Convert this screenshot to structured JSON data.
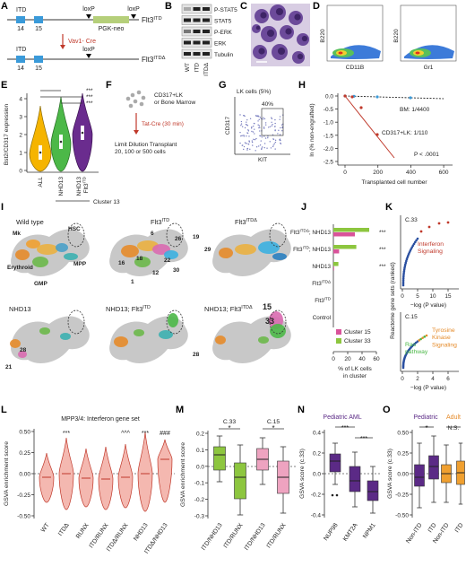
{
  "panel_a": {
    "label": "A",
    "itd_top": "ITD",
    "loxp_top_left": "loxP",
    "loxp_top_right": "loxP",
    "exon14_top": "14",
    "exon15_top": "15",
    "neo": "PGK-neo",
    "allele_top": {
      "base": "Flt3",
      "sup": "ITD"
    },
    "cre": "Vav1- Cre",
    "itd_bottom": "ITD",
    "loxp_bottom": "loxP",
    "exon14_bottom": "14",
    "exon15_bottom": "15",
    "allele_bottom": {
      "base": "Flt3",
      "sup": "ITDΔ"
    }
  },
  "panel_b": {
    "label": "B",
    "proteins": [
      "P-STAT5",
      "STAT5",
      "P-ERK",
      "ERK",
      "Tubulin"
    ],
    "lanes": [
      "WT",
      "ITD",
      "ITDΔ"
    ]
  },
  "panel_c": {
    "label": "C"
  },
  "panel_d": {
    "label": "D",
    "plots": [
      {
        "y": "B220",
        "x": "CD11B"
      },
      {
        "y": "B220",
        "x": "Gr1"
      }
    ]
  },
  "panel_e": {
    "label": "E",
    "y_label": "Bst2/CD317 expression",
    "yticks": [
      "0",
      "1",
      "2",
      "3",
      "4"
    ],
    "groups": [
      "ALL",
      "NHD13",
      "NHD13"
    ],
    "group_3_allele": {
      "base": "Flt3",
      "sup": "ITD"
    },
    "cluster": "Cluster 13",
    "significance": [
      "***",
      "***",
      "***"
    ]
  },
  "panel_f": {
    "label": "F",
    "source": [
      "CD317+LK",
      "or Bone Marrow"
    ],
    "treatment": "Tat-Cre (30 min)",
    "assay": [
      "Limit Dilution Transplant",
      "20, 100 or 500 cells"
    ]
  },
  "panel_g": {
    "label": "G",
    "title": "LK cells (5%)",
    "gate": "40%",
    "y_label": "CD317",
    "x_label": "KIT"
  },
  "panel_h": {
    "label": "H",
    "y_label": "ln (% non-engrafted)",
    "yticks": [
      "0.0",
      "-0.5",
      "-1.0",
      "-1.5",
      "-2.0",
      "-2.5"
    ],
    "xticks": [
      "0",
      "200",
      "400",
      "600"
    ],
    "x_label": "Transplanted cell number",
    "bm": "BM: 1/4400",
    "lk": "CD317+LK: 1/110",
    "p_value": "P < .0001"
  },
  "panel_i": {
    "label": "I",
    "titles": [
      "Wild type",
      {
        "base": "Flt3",
        "sup": "ITD"
      },
      {
        "base": "Flt3",
        "sup": "ITDΔ"
      },
      "NHD13",
      {
        "base": "NHD13; Flt3",
        "sup": "ITD"
      },
      {
        "base": "NHD13; Flt3",
        "sup": "ITDΔ"
      }
    ],
    "populations": [
      "Mk",
      "HSC",
      "MPP",
      "Erythroid",
      "GMP"
    ],
    "clusters": [
      "6",
      "26",
      "19",
      "29",
      "16",
      "18",
      "22",
      "12",
      "30",
      "1",
      "28",
      "21",
      "28",
      "15",
      "33"
    ]
  },
  "panel_j": {
    "label": "J",
    "type": "bar",
    "categories": [
      {
        "base": "Flt3",
        "sup": "ITDΔ",
        "rest": "; NHD13"
      },
      {
        "base": "Flt3",
        "sup": "ITD",
        "rest": "; NHD13"
      },
      "NHD13",
      {
        "base": "Flt3",
        "sup": "ITDΔ"
      },
      {
        "base": "Flt3",
        "sup": "ITD"
      },
      "Control"
    ],
    "series": [
      {
        "name": "Cluster 15",
        "color": "#d9539a",
        "values": [
          30,
          8,
          1,
          0,
          0,
          0
        ]
      },
      {
        "name": "Cluster 33",
        "color": "#8dc63f",
        "values": [
          50,
          32,
          7,
          0,
          0,
          0
        ]
      }
    ],
    "xlim": [
      0,
      60
    ],
    "xticks": [
      0,
      20,
      40,
      60
    ],
    "x_label": [
      "% of LK cells",
      "in cluster"
    ],
    "significance": [
      "***",
      "***",
      "***"
    ]
  },
  "panel_k": {
    "label": "K",
    "y_label": "Reactome gene sets (ranked)",
    "top": {
      "cluster": "C.33",
      "pathway": [
        "Interferon",
        "Signaling"
      ],
      "xticks": [
        "0",
        "5",
        "10",
        "15"
      ],
      "x_label": "−log (P value)"
    },
    "bottom": {
      "cluster": "C.15",
      "pathways": [
        [
          "Tyrosine",
          "Kinase",
          "Signaling"
        ],
        [
          "Ras",
          "pathway"
        ]
      ],
      "xticks": [
        "0",
        "2",
        "4",
        "6"
      ],
      "x_label": "−log (P value)"
    }
  },
  "panel_l": {
    "label": "L",
    "title": "MPP3/4: Interferon gene set",
    "y_label": "GSVA enrichment score",
    "yticks": [
      "0.50",
      "0.25",
      "0.00",
      "-0.25",
      "-0.50"
    ],
    "groups": [
      "WT",
      "ITDΔ",
      "RUNX",
      "ITD/RUNX",
      "ITDΔ/RUNX",
      "NHD13",
      "ITDΔ/NHD13"
    ],
    "significance": [
      "***",
      "^^^",
      "***",
      "###"
    ]
  },
  "panel_m": {
    "label": "M",
    "clusters": [
      "C.33",
      "C.15"
    ],
    "y_label": "GSVA enrichment score",
    "yticks": [
      "0.2",
      "0.1",
      "0.0",
      "-0.1",
      "-0.2",
      "-0.3"
    ],
    "groups": [
      "ITD/NHD13",
      "ITD/RUNX",
      "ITD/NHD13",
      "ITD/RUNX"
    ],
    "significance": [
      "*",
      "*"
    ]
  },
  "panel_n": {
    "label": "N",
    "title": "Pediatric AML",
    "y_label": "GSVA score (c.33)",
    "yticks": [
      "0.4",
      "0.2",
      "0.0",
      "-0.2",
      "-0.4"
    ],
    "groups": [
      "NUP98",
      "KMT2A",
      "NPM1"
    ],
    "significance": [
      "***",
      "***"
    ]
  },
  "panel_o": {
    "label": "O",
    "cohorts": [
      "Pediatric",
      "Adult"
    ],
    "y_label": "GSVA score (c.33)",
    "yticks": [
      "0.50",
      "0.25",
      "0.00",
      "-0.25",
      "-0.50"
    ],
    "groups": [
      "Non-ITD",
      "ITD",
      "Non-ITD",
      "ITD"
    ],
    "significance": [
      "*",
      "N.S."
    ]
  }
}
